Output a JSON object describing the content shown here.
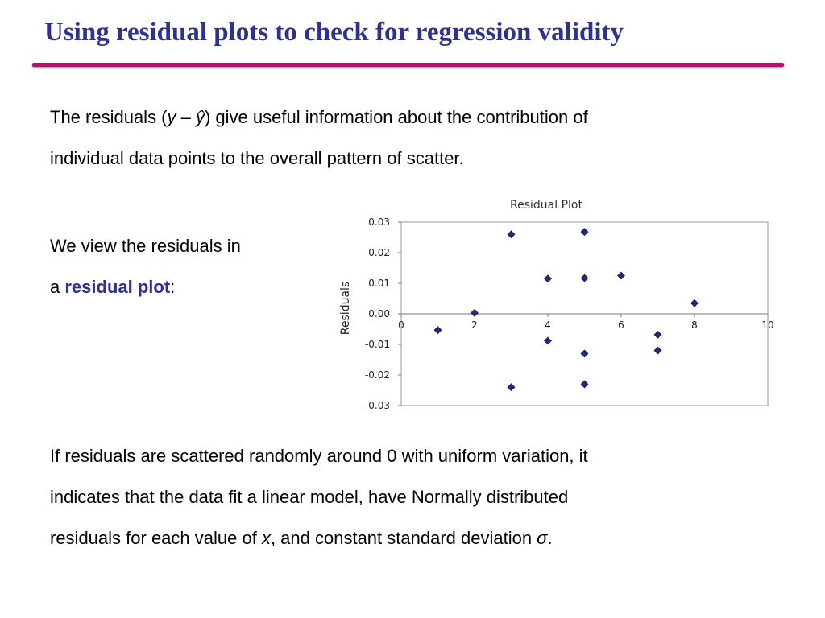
{
  "slide": {
    "title": "Using residual plots to check for regression validity",
    "intro": {
      "line1_a": "The residuals (",
      "line1_y": "y",
      "line1_dash": " – ",
      "line1_yhat": "ŷ",
      "line1_b": ") give useful information about the contribution of",
      "line2": "individual data points to the overall pattern of scatter."
    },
    "view": {
      "line1": "We view the residuals in",
      "line2_a": "a ",
      "line2_term": "residual plot",
      "line2_b": ":"
    },
    "conclusion": {
      "line1": "If residuals are scattered randomly around 0 with uniform variation, it",
      "line2": "indicates that the data fit a linear model, have Normally distributed",
      "line3_a": "residuals for each value of ",
      "line3_x": "x",
      "line3_b": ", and constant standard deviation ",
      "line3_sigma": "σ",
      "line3_c": "."
    }
  },
  "colors": {
    "title": "#2e3192",
    "rule": "#b0126f",
    "accent": "#2e3192",
    "marker": "#1f2b7a"
  },
  "chart_data": {
    "type": "scatter",
    "title": "Residual Plot",
    "xlabel": "",
    "ylabel": "Residuals",
    "xlim": [
      0,
      10
    ],
    "ylim": [
      -0.03,
      0.03
    ],
    "x_ticks": [
      "0",
      "2",
      "4",
      "6",
      "8",
      "10"
    ],
    "y_ticks": [
      "0.03",
      "0.02",
      "0.01",
      "0.00",
      "-0.01",
      "-0.02",
      "-0.03"
    ],
    "grid": false,
    "marker": "diamond",
    "points": [
      {
        "x": 1,
        "y": -0.0053
      },
      {
        "x": 2,
        "y": 0.0003
      },
      {
        "x": 3,
        "y": 0.026
      },
      {
        "x": 3,
        "y": -0.024
      },
      {
        "x": 4,
        "y": 0.0115
      },
      {
        "x": 4,
        "y": -0.0088
      },
      {
        "x": 5,
        "y": 0.0268
      },
      {
        "x": 5,
        "y": 0.0117
      },
      {
        "x": 5,
        "y": -0.013
      },
      {
        "x": 5,
        "y": -0.023
      },
      {
        "x": 6,
        "y": 0.0125
      },
      {
        "x": 7,
        "y": -0.0068
      },
      {
        "x": 7,
        "y": -0.012
      },
      {
        "x": 8,
        "y": 0.0035
      }
    ]
  }
}
